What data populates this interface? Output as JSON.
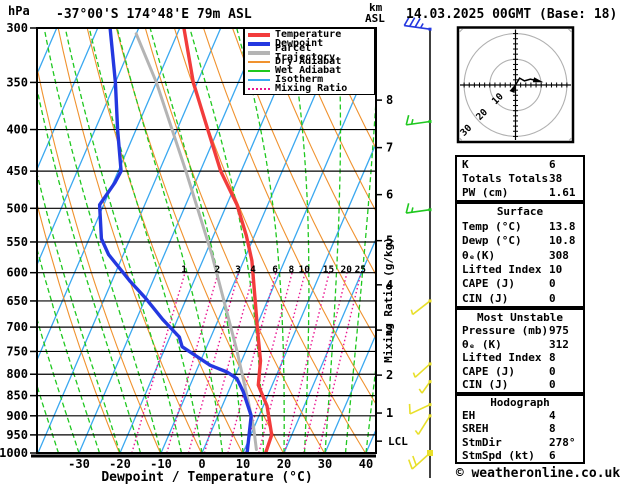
{
  "header": {
    "pressure_unit": "hPa",
    "title": "-37°00'S 174°48'E 79m ASL",
    "km_label": "km",
    "asl_label": "ASL",
    "datetime": "14.03.2025 00GMT (Base: 18)"
  },
  "legend": {
    "items": [
      {
        "label": "Temperature",
        "color": "#f23c3c",
        "thick": true,
        "dotted": false
      },
      {
        "label": "Dewpoint",
        "color": "#2438e0",
        "thick": true,
        "dotted": false
      },
      {
        "label": "Parcel Trajectory",
        "color": "#b4b4b4",
        "thick": true,
        "dotted": false
      },
      {
        "label": "Dry Adiabat",
        "color": "#f0922e",
        "thick": false,
        "dotted": false
      },
      {
        "label": "Wet Adiabat",
        "color": "#1fc81f",
        "thick": false,
        "dotted": false
      },
      {
        "label": "Isotherm",
        "color": "#3aa8f0",
        "thick": false,
        "dotted": false
      },
      {
        "label": "Mixing Ratio",
        "color": "#ea1590",
        "thick": false,
        "dotted": true
      }
    ]
  },
  "axes": {
    "pressure_ticks": [
      300,
      350,
      400,
      450,
      500,
      550,
      600,
      650,
      700,
      750,
      800,
      850,
      900,
      950,
      1000
    ],
    "temp_ticks": [
      -30,
      -20,
      -10,
      0,
      10,
      20,
      30,
      40
    ],
    "xlabel": "Dewpoint / Temperature (°C)",
    "mixing_label": "Mixing Ratio (g/kg)",
    "km_ticks": [
      {
        "km": 8,
        "p": 368
      },
      {
        "km": 7,
        "p": 421
      },
      {
        "km": 6,
        "p": 481
      },
      {
        "km": 5,
        "p": 548
      },
      {
        "km": 4,
        "p": 621
      },
      {
        "km": 3,
        "p": 706
      },
      {
        "km": 2,
        "p": 802
      },
      {
        "km": 1,
        "p": 893
      }
    ],
    "lcl_label": "LCL",
    "lcl_pressure": 967
  },
  "chart_data": {
    "type": "skewt-sounding",
    "pressure_range_hpa": [
      300,
      1000
    ],
    "temp_axis_range_c": [
      -40,
      41
    ],
    "isotherm_step_c": 10,
    "mixing_ratio_lines_gkg": [
      1,
      2,
      3,
      4,
      6,
      8,
      10,
      15,
      20,
      25
    ],
    "series": [
      {
        "name": "Temperature",
        "color": "#f23c3c",
        "width": 3.4,
        "points_p_t": [
          [
            300,
            -49
          ],
          [
            350,
            -41
          ],
          [
            400,
            -32.5
          ],
          [
            450,
            -25
          ],
          [
            495,
            -17.5
          ],
          [
            540,
            -12
          ],
          [
            580,
            -8
          ],
          [
            645,
            -3.3
          ],
          [
            705,
            0.6
          ],
          [
            770,
            4.6
          ],
          [
            825,
            6.6
          ],
          [
            875,
            10.9
          ],
          [
            950,
            15.1
          ],
          [
            1000,
            15.5
          ]
        ]
      },
      {
        "name": "Dewpoint",
        "color": "#2438e0",
        "width": 3.4,
        "points_p_t": [
          [
            300,
            -67
          ],
          [
            350,
            -60
          ],
          [
            400,
            -54.5
          ],
          [
            450,
            -49.3
          ],
          [
            465,
            -49.6
          ],
          [
            495,
            -51
          ],
          [
            545,
            -47
          ],
          [
            570,
            -43.6
          ],
          [
            615,
            -35.5
          ],
          [
            645,
            -30
          ],
          [
            685,
            -23.6
          ],
          [
            720,
            -17.7
          ],
          [
            740,
            -16
          ],
          [
            780,
            -7.2
          ],
          [
            795,
            -2.4
          ],
          [
            810,
            0.7
          ],
          [
            840,
            3.6
          ],
          [
            900,
            8.1
          ],
          [
            1000,
            11
          ]
        ]
      },
      {
        "name": "Parcel Trajectory",
        "color": "#b4b4b4",
        "width": 3,
        "points_p_t": [
          [
            305,
            -60
          ],
          [
            350,
            -50
          ],
          [
            450,
            -33.5
          ],
          [
            570,
            -18.4
          ],
          [
            750,
            -2.1
          ],
          [
            860,
            5.6
          ],
          [
            930,
            9.9
          ],
          [
            990,
            12.9
          ]
        ]
      }
    ]
  },
  "wind_barbs": [
    {
      "p": 301,
      "color": "#2438e0",
      "full": 3,
      "half": 1,
      "angle": 172,
      "len": 26,
      "marker": "dot"
    },
    {
      "p": 391,
      "color": "#1fc81f",
      "full": 1,
      "half": 1,
      "angle": 188,
      "len": 24,
      "marker": "dot"
    },
    {
      "p": 502,
      "color": "#1fc81f",
      "full": 1,
      "half": 1,
      "angle": 188,
      "len": 24,
      "marker": "dot"
    },
    {
      "p": 650,
      "color": "#e8df2a",
      "full": 0,
      "half": 1,
      "angle": 218,
      "len": 22,
      "marker": "dot"
    },
    {
      "p": 777,
      "color": "#e8df2a",
      "full": 0,
      "half": 1,
      "angle": 222,
      "len": 20,
      "marker": "dot"
    },
    {
      "p": 817,
      "color": "#e8df2a",
      "full": 0,
      "half": 1,
      "angle": 235,
      "len": 14,
      "marker": "dot"
    },
    {
      "p": 872,
      "color": "#e8df2a",
      "full": 1,
      "half": 0,
      "angle": 205,
      "len": 22,
      "marker": "dot"
    },
    {
      "p": 900,
      "color": "#e8df2a",
      "full": 0,
      "half": 1,
      "angle": 238,
      "len": 22,
      "marker": "dot"
    },
    {
      "p": 1000,
      "color": "#e8df2a",
      "full": 2,
      "half": 0,
      "angle": 222,
      "len": 24,
      "marker": "square"
    }
  ],
  "hodograph": {
    "unit_label": "kt",
    "ring_labels": [
      "10",
      "20",
      "30"
    ],
    "ring_step_kt": 10,
    "trace_kt": [
      [
        0,
        0
      ],
      [
        1.6,
        2.7
      ],
      [
        3.5,
        1.6
      ],
      [
        5.8,
        2.3
      ],
      [
        8.6,
        1.6
      ]
    ]
  },
  "tables": [
    {
      "title": "",
      "rows": [
        [
          "K",
          "6"
        ],
        [
          "Totals Totals",
          "38"
        ],
        [
          "PW (cm)",
          "1.61"
        ]
      ]
    },
    {
      "title": "Surface",
      "rows": [
        [
          "Temp (°C)",
          "13.8"
        ],
        [
          "Dewp (°C)",
          "10.8"
        ],
        [
          "θₑ(K)",
          "308"
        ],
        [
          "Lifted Index",
          "10"
        ],
        [
          "CAPE (J)",
          "0"
        ],
        [
          "CIN (J)",
          "0"
        ]
      ]
    },
    {
      "title": "Most Unstable",
      "rows": [
        [
          "Pressure (mb)",
          "975"
        ],
        [
          "θₑ (K)",
          "312"
        ],
        [
          "Lifted Index",
          "8"
        ],
        [
          "CAPE (J)",
          "0"
        ],
        [
          "CIN (J)",
          "0"
        ]
      ]
    },
    {
      "title": "Hodograph",
      "rows": [
        [
          "EH",
          "4"
        ],
        [
          "SREH",
          "8"
        ],
        [
          "StmDir",
          "278°"
        ],
        [
          "StmSpd (kt)",
          "6"
        ]
      ]
    }
  ],
  "footer": {
    "copyright": "© weatheronline.co.uk"
  }
}
